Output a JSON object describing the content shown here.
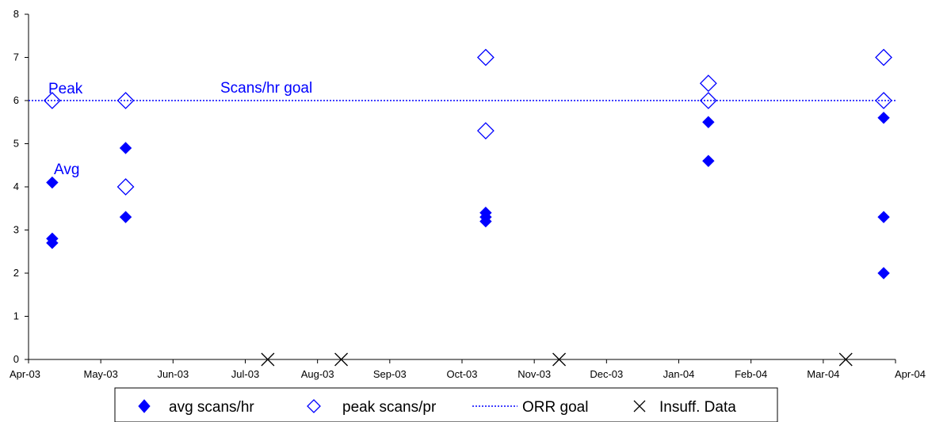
{
  "chart_data": {
    "type": "scatter",
    "x_tick_labels": [
      "Apr-03",
      "May-03",
      "Jun-03",
      "Jul-03",
      "Aug-03",
      "Sep-03",
      "Oct-03",
      "Nov-03",
      "Dec-03",
      "Jan-04",
      "Feb-04",
      "Mar-04",
      "Apr-04"
    ],
    "y_tick_labels": [
      "0",
      "1",
      "2",
      "3",
      "4",
      "5",
      "6",
      "7",
      "8"
    ],
    "ylim": [
      0,
      8
    ],
    "xlim": [
      "2003-04-01",
      "2004-04-01"
    ],
    "grid": false,
    "legend_position": "bottom",
    "series": [
      {
        "name": "avg scans/hr",
        "marker": "filled-diamond",
        "color": "#0000ff",
        "points": [
          {
            "x": "2003-04-11",
            "y": 4.1
          },
          {
            "x": "2003-04-11",
            "y": 2.8
          },
          {
            "x": "2003-04-11",
            "y": 2.7
          },
          {
            "x": "2003-05-12",
            "y": 4.9
          },
          {
            "x": "2003-05-12",
            "y": 3.3
          },
          {
            "x": "2003-10-11",
            "y": 3.4
          },
          {
            "x": "2003-10-11",
            "y": 3.3
          },
          {
            "x": "2003-10-11",
            "y": 3.2
          },
          {
            "x": "2004-01-13",
            "y": 5.5
          },
          {
            "x": "2004-01-13",
            "y": 4.6
          },
          {
            "x": "2004-03-27",
            "y": 5.6
          },
          {
            "x": "2004-03-27",
            "y": 3.3
          },
          {
            "x": "2004-03-27",
            "y": 2.0
          }
        ]
      },
      {
        "name": "peak scans/pr",
        "marker": "open-diamond",
        "color": "#0000ff",
        "points": [
          {
            "x": "2003-04-11",
            "y": 6.0
          },
          {
            "x": "2003-05-12",
            "y": 6.0
          },
          {
            "x": "2003-05-12",
            "y": 4.0
          },
          {
            "x": "2003-10-11",
            "y": 7.0
          },
          {
            "x": "2003-10-11",
            "y": 5.3
          },
          {
            "x": "2004-01-13",
            "y": 6.4
          },
          {
            "x": "2004-01-13",
            "y": 6.0
          },
          {
            "x": "2004-03-27",
            "y": 7.0
          },
          {
            "x": "2004-03-27",
            "y": 6.0
          }
        ]
      },
      {
        "name": "ORR goal",
        "marker": "dotted-line",
        "color": "#0000ff",
        "y": 6
      },
      {
        "name": "Insuff. Data",
        "marker": "x",
        "color": "#000000",
        "points": [
          {
            "x": "2003-07-11",
            "y": 0
          },
          {
            "x": "2003-08-11",
            "y": 0
          },
          {
            "x": "2003-11-11",
            "y": 0
          },
          {
            "x": "2004-03-11",
            "y": 0
          }
        ]
      }
    ],
    "annotations": [
      "Peak",
      "Avg",
      "Scans/hr goal"
    ]
  }
}
